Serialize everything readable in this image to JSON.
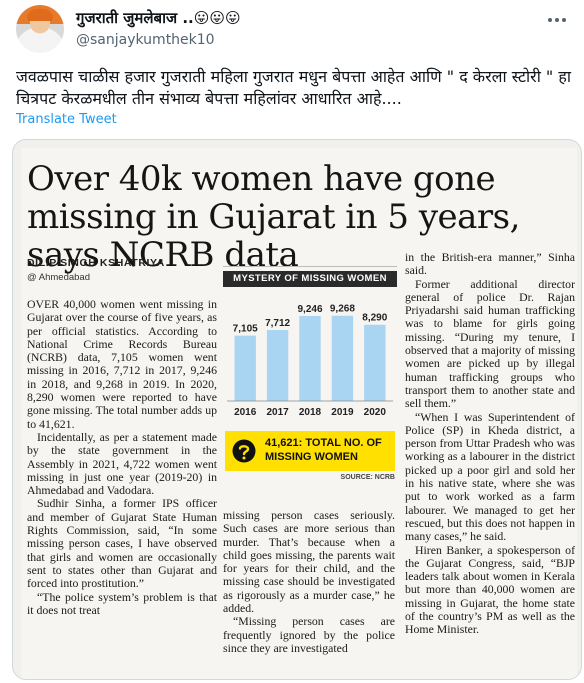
{
  "tweet": {
    "display_name": "गुजराती जुमलेबाज ..",
    "name_emojis": "😛😛😛",
    "handle": "@sanjaykumthek10",
    "text": "जवळपास चाळीस हजार गुजराती महिला गुजरात मधुन बेपत्ता आहेत आणि \" द केरला स्टोरी \" हा चित्रपट केरळमधील तीन संभाव्य बेपत्ता महिलांवर आधारित आहे....",
    "translate_label": "Translate Tweet"
  },
  "article": {
    "headline": "Over 40k women have gone missing in Gujarat in 5 years, says NCRB data",
    "byline": "DILIP SINGH KSHATRIYA",
    "dateline": "@ Ahmedabad",
    "col1": [
      "OVER 40,000 women went missing in Gujarat over the course of five years, as per official statistics. According to National Crime Records Bureau (NCRB) data, 7,105 women went missing in 2016, 7,712 in 2017, 9,246 in 2018, and 9,268 in 2019. In 2020, 8,290 women were reported to have gone missing. The total number adds up to 41,621.",
      "Incidentally, as per a statement made by the state government in the Assembly in 2021, 4,722 women went missing in just one year (2019-20) in Ahmedabad and Vadodara.",
      "Sudhir Sinha, a former IPS officer and member of Gujarat State Human Rights Commission, said, “In some missing person cases, I have observed that girls and women are occasionally sent to states other than Gujarat and forced into prostitution.”",
      "“The police system’s problem is that it does not treat"
    ],
    "col2": [
      "missing person cases seriously. Such cases are more serious than murder. That’s because when a child goes missing, the parents wait for years for their child, and the missing case should be investigated as rigorously as a murder case,” he added.",
      "“Missing person cases are frequently ignored by the police since they are investigated"
    ],
    "col3": [
      "in the British-era manner,” Sinha said.",
      "Former additional director general of police Dr. Rajan Priyadarshi said human trafficking was to blame for girls going missing. “During my tenure, I observed that a majority of missing women are picked up by illegal human trafficking groups who transport them to another state and sell them.”",
      "“When I was Superintendent of Police (SP) in Kheda district, a person from Uttar Pradesh who was working as a labourer in the district picked up a poor girl and sold her in his native state, where she was put to work worked as a farm labourer. We managed to get her rescued, but this does not happen in many cases,” he said.",
      "Hiren Banker, a spokesperson of the Gujarat Congress, said, “BJP leaders talk about women in Kerala but more than 40,000 women are missing in Gujarat, the home state of the country’s PM as well as the Home Minister."
    ]
  },
  "infobox": {
    "title": "MYSTERY OF MISSING WOMEN",
    "total_value": "41,621:",
    "total_label": "TOTAL NO. OF MISSING WOMEN",
    "source": "SOURCE: NCRB",
    "bar_color": "#a9d4f2",
    "banner_color": "#ffe000"
  },
  "chart_data": {
    "type": "bar",
    "categories": [
      "2016",
      "2017",
      "2018",
      "2019",
      "2020"
    ],
    "values": [
      7105,
      7712,
      9246,
      9268,
      8290
    ],
    "value_labels": [
      "7,105",
      "7,712",
      "9,246",
      "9,268",
      "8,290"
    ],
    "title": "MYSTERY OF MISSING WOMEN",
    "xlabel": "",
    "ylabel": ""
  }
}
